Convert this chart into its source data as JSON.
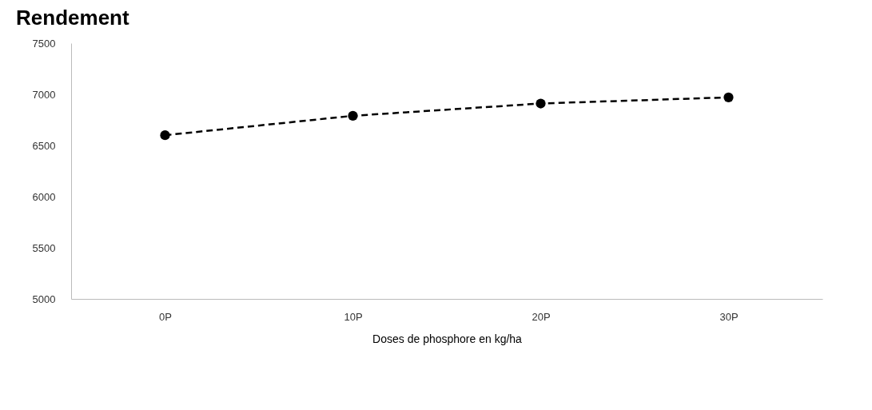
{
  "chart_data": {
    "type": "line",
    "title": "Rendement",
    "xlabel": "Doses de phosphore en kg/ha",
    "categories": [
      "0P",
      "10P",
      "20P",
      "30P"
    ],
    "series": [
      {
        "color": "#000000",
        "values": [
          6600,
          6790,
          6910,
          6970
        ]
      }
    ],
    "ylim": [
      5000,
      7500
    ],
    "yticks": [
      5000,
      5500,
      6000,
      6500,
      7000,
      7500
    ],
    "grid": false,
    "legend": false,
    "marker": "circle",
    "line_style": "dashed"
  }
}
